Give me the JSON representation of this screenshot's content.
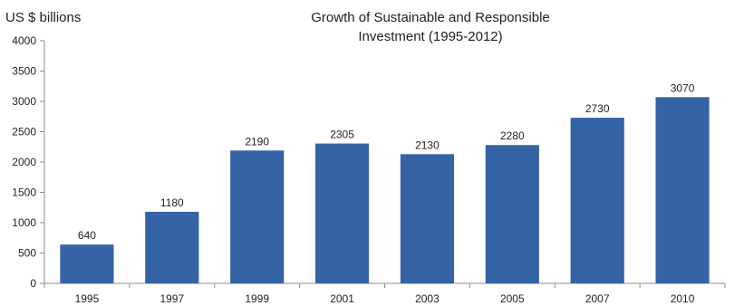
{
  "chart_data": {
    "type": "bar",
    "title_lines": [
      "Growth of Sustainable and Responsible",
      "Investment (1995-2012)"
    ],
    "ylabel": "US $ billions",
    "xlabel": "",
    "categories": [
      "1995",
      "1997",
      "1999",
      "2001",
      "2003",
      "2005",
      "2007",
      "2010"
    ],
    "values": [
      640,
      1180,
      2190,
      2305,
      2130,
      2280,
      2730,
      3070
    ],
    "data_labels": [
      "640",
      "1180",
      "2190",
      "2305",
      "2130",
      "2280",
      "2730",
      "3070"
    ],
    "ylim": [
      0,
      4000
    ],
    "yticks": [
      "0",
      "500",
      "1000",
      "1500",
      "2000",
      "2500",
      "3000",
      "3500",
      "4000"
    ],
    "bar_color": "#3463a6",
    "axis_color": "#8c8c8c",
    "grid": false,
    "legend": "none"
  }
}
